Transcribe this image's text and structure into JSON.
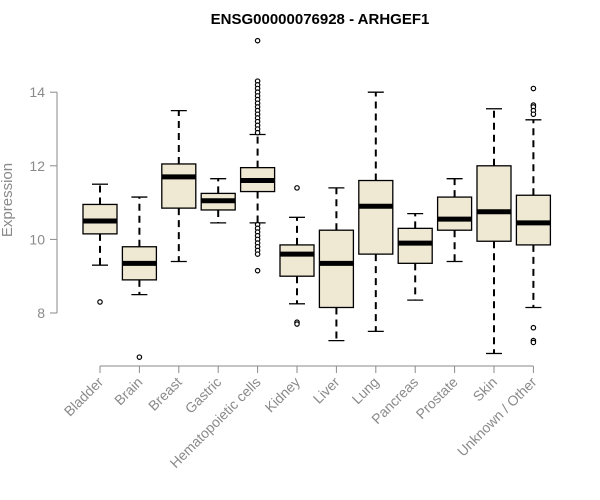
{
  "chart_data": {
    "type": "box",
    "title": "ENSG00000076928 - ARHGEF1",
    "ylabel": "Expression",
    "xlabel": "",
    "ylim": [
      6.6,
      15.6
    ],
    "yticks": [
      8,
      10,
      12,
      14
    ],
    "grid": false,
    "colors": {
      "box_fill": "#efe8d2",
      "box_stroke": "#000000",
      "axis": "#8a8a8a"
    },
    "categories": [
      "Bladder",
      "Brain",
      "Breast",
      "Gastric",
      "Hematopoietic cells",
      "Kidney",
      "Liver",
      "Lung",
      "Pancreas",
      "Prostate",
      "Skin",
      "Unknown / Other"
    ],
    "boxes": [
      {
        "min": 9.3,
        "q1": 10.15,
        "median": 10.5,
        "q3": 10.95,
        "max": 11.5,
        "outliers": [
          8.3
        ]
      },
      {
        "min": 8.5,
        "q1": 8.9,
        "median": 9.35,
        "q3": 9.8,
        "max": 11.15,
        "outliers": [
          6.8
        ]
      },
      {
        "min": 9.4,
        "q1": 10.85,
        "median": 11.7,
        "q3": 12.05,
        "max": 13.5,
        "outliers": []
      },
      {
        "min": 10.45,
        "q1": 10.8,
        "median": 11.05,
        "q3": 11.25,
        "max": 11.65,
        "outliers": []
      },
      {
        "min": 10.45,
        "q1": 11.3,
        "median": 11.6,
        "q3": 11.95,
        "max": 12.85,
        "outliers": [
          15.4,
          14.3,
          14.2,
          14.1,
          14.0,
          13.9,
          13.8,
          13.7,
          13.6,
          13.5,
          13.4,
          13.3,
          13.2,
          13.1,
          13.0,
          12.9,
          10.4,
          10.3,
          10.2,
          10.1,
          10.0,
          9.9,
          9.8,
          9.7,
          9.6,
          9.15
        ]
      },
      {
        "min": 8.25,
        "q1": 9.0,
        "median": 9.6,
        "q3": 9.85,
        "max": 10.6,
        "outliers": [
          11.4,
          7.75,
          7.7
        ]
      },
      {
        "min": 7.25,
        "q1": 8.15,
        "median": 9.35,
        "q3": 10.25,
        "max": 11.4,
        "outliers": []
      },
      {
        "min": 7.5,
        "q1": 9.6,
        "median": 10.9,
        "q3": 11.6,
        "max": 14.0,
        "outliers": []
      },
      {
        "min": 8.35,
        "q1": 9.35,
        "median": 9.9,
        "q3": 10.3,
        "max": 10.7,
        "outliers": []
      },
      {
        "min": 9.4,
        "q1": 10.25,
        "median": 10.55,
        "q3": 11.15,
        "max": 11.65,
        "outliers": []
      },
      {
        "min": 6.9,
        "q1": 9.95,
        "median": 10.75,
        "q3": 12.0,
        "max": 13.55,
        "outliers": []
      },
      {
        "min": 8.15,
        "q1": 9.85,
        "median": 10.45,
        "q3": 11.2,
        "max": 13.25,
        "outliers": [
          14.1,
          13.65,
          13.6,
          13.5,
          13.4,
          7.6,
          7.25,
          7.2
        ]
      }
    ]
  }
}
